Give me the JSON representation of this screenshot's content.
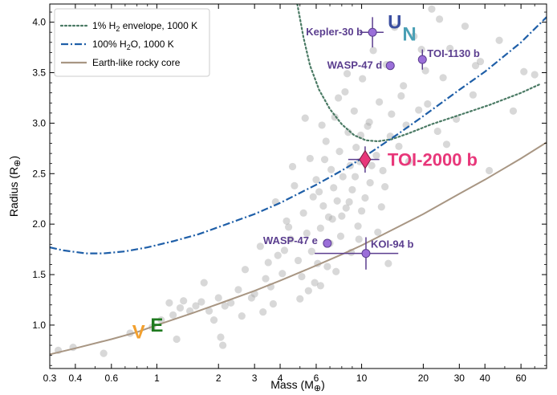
{
  "chart_data": {
    "type": "scatter",
    "title": "",
    "xlabel": "Mass (M",
    "xlabel_sym": "⊕",
    "xlabel_end": ")",
    "ylabel": "Radius (R",
    "ylabel_sym": "⊕",
    "ylabel_end": ")",
    "xscale": "log",
    "xlim": [
      0.3,
      80
    ],
    "ylim": [
      0.57,
      4.18
    ],
    "xticks": [
      0.3,
      0.4,
      0.6,
      1,
      2,
      3,
      4,
      6,
      10,
      20,
      30,
      40,
      60
    ],
    "xtick_labels": [
      "0.3",
      "0.4",
      "0.6",
      "1",
      "2",
      "3",
      "4",
      "6",
      "10",
      "20",
      "30",
      "40",
      "60"
    ],
    "yticks": [
      1.0,
      1.5,
      2.0,
      2.5,
      3.0,
      3.5,
      4.0
    ],
    "ytick_labels": [
      "1.0",
      "1.5",
      "2.0",
      "2.5",
      "3.0",
      "3.5",
      "4.0"
    ],
    "legend_position": "top-left",
    "legend": [
      {
        "key": "h2",
        "label_pre": "1% H",
        "label_sub": "2",
        "label_post": " envelope, 1000 K",
        "color": "#4a7a64",
        "style": "dotted"
      },
      {
        "key": "h2o",
        "label_pre": "100% H",
        "label_sub": "2",
        "label_post": "O, 1000 K",
        "color": "#1f5fa8",
        "style": "dashdot"
      },
      {
        "key": "rocky",
        "label_pre": "Earth-like rocky core",
        "label_sub": "",
        "label_post": "",
        "color": "#a89683",
        "style": "solid"
      }
    ],
    "curves": {
      "h2": {
        "x": [
          4.85,
          5.2,
          5.6,
          6.2,
          7.0,
          8.0,
          9.2,
          10.5,
          12.0,
          14.0,
          17.0,
          22.0,
          30.0,
          42.0,
          60.0,
          75.0
        ],
        "y": [
          4.18,
          3.85,
          3.57,
          3.33,
          3.14,
          2.99,
          2.88,
          2.83,
          2.82,
          2.84,
          2.9,
          2.99,
          3.08,
          3.18,
          3.3,
          3.39
        ]
      },
      "h2o": {
        "x": [
          0.3,
          0.35,
          0.45,
          0.55,
          0.7,
          0.9,
          1.2,
          1.6,
          2.0,
          3.0,
          4.0,
          6.0,
          8.0,
          10.0,
          15.0,
          20.0,
          30.0,
          40.0,
          60.0,
          80.0
        ],
        "y": [
          1.77,
          1.74,
          1.71,
          1.71,
          1.73,
          1.77,
          1.83,
          1.9,
          1.97,
          2.1,
          2.21,
          2.39,
          2.53,
          2.65,
          2.89,
          3.07,
          3.33,
          3.51,
          3.8,
          4.05
        ]
      },
      "rocky": {
        "x": [
          0.3,
          0.4,
          0.6,
          0.8,
          1.0,
          1.5,
          2.0,
          3.0,
          4.0,
          6.0,
          8.0,
          10.0,
          15.0,
          20.0,
          30.0,
          40.0,
          60.0,
          80.0
        ],
        "y": [
          0.71,
          0.77,
          0.86,
          0.93,
          1.0,
          1.12,
          1.21,
          1.34,
          1.44,
          1.59,
          1.7,
          1.79,
          1.97,
          2.1,
          2.3,
          2.44,
          2.65,
          2.81
        ]
      }
    },
    "background_points": [
      {
        "x": 0.33,
        "y": 0.75
      },
      {
        "x": 0.39,
        "y": 0.78
      },
      {
        "x": 0.55,
        "y": 0.72
      },
      {
        "x": 0.74,
        "y": 0.92
      },
      {
        "x": 0.95,
        "y": 0.98
      },
      {
        "x": 1.05,
        "y": 1.05
      },
      {
        "x": 1.2,
        "y": 1.1
      },
      {
        "x": 1.3,
        "y": 1.17
      },
      {
        "x": 1.35,
        "y": 1.24
      },
      {
        "x": 1.45,
        "y": 1.14
      },
      {
        "x": 1.55,
        "y": 1.19
      },
      {
        "x": 1.65,
        "y": 1.23
      },
      {
        "x": 1.8,
        "y": 1.14
      },
      {
        "x": 1.9,
        "y": 1.05
      },
      {
        "x": 2.0,
        "y": 1.27
      },
      {
        "x": 2.1,
        "y": 0.8
      },
      {
        "x": 2.15,
        "y": 1.19
      },
      {
        "x": 2.3,
        "y": 1.22
      },
      {
        "x": 2.5,
        "y": 1.35
      },
      {
        "x": 2.7,
        "y": 1.55
      },
      {
        "x": 2.9,
        "y": 1.27
      },
      {
        "x": 3.0,
        "y": 1.31
      },
      {
        "x": 3.2,
        "y": 1.78
      },
      {
        "x": 3.4,
        "y": 1.46
      },
      {
        "x": 3.6,
        "y": 1.38
      },
      {
        "x": 3.8,
        "y": 2.22
      },
      {
        "x": 3.9,
        "y": 1.69
      },
      {
        "x": 4.1,
        "y": 1.51
      },
      {
        "x": 4.3,
        "y": 2.03
      },
      {
        "x": 4.5,
        "y": 1.85
      },
      {
        "x": 4.7,
        "y": 2.38
      },
      {
        "x": 4.9,
        "y": 1.64
      },
      {
        "x": 5.1,
        "y": 1.48
      },
      {
        "x": 5.2,
        "y": 2.11
      },
      {
        "x": 5.4,
        "y": 1.91
      },
      {
        "x": 5.6,
        "y": 2.65
      },
      {
        "x": 5.7,
        "y": 1.73
      },
      {
        "x": 5.9,
        "y": 1.42
      },
      {
        "x": 6.0,
        "y": 2.44
      },
      {
        "x": 6.2,
        "y": 2.32
      },
      {
        "x": 6.3,
        "y": 1.96
      },
      {
        "x": 6.5,
        "y": 2.18
      },
      {
        "x": 6.7,
        "y": 2.82
      },
      {
        "x": 6.8,
        "y": 1.58
      },
      {
        "x": 6.9,
        "y": 2.07
      },
      {
        "x": 7.1,
        "y": 2.54
      },
      {
        "x": 7.3,
        "y": 2.36
      },
      {
        "x": 7.4,
        "y": 3.06
      },
      {
        "x": 7.6,
        "y": 2.23
      },
      {
        "x": 7.8,
        "y": 2.72
      },
      {
        "x": 7.9,
        "y": 1.88
      },
      {
        "x": 8.1,
        "y": 2.47
      },
      {
        "x": 8.3,
        "y": 3.31
      },
      {
        "x": 8.4,
        "y": 2.16
      },
      {
        "x": 8.6,
        "y": 2.91
      },
      {
        "x": 8.8,
        "y": 2.58
      },
      {
        "x": 9.0,
        "y": 2.34
      },
      {
        "x": 9.2,
        "y": 3.12
      },
      {
        "x": 9.4,
        "y": 2.76
      },
      {
        "x": 9.6,
        "y": 1.98
      },
      {
        "x": 9.8,
        "y": 2.62
      },
      {
        "x": 10.1,
        "y": 3.44
      },
      {
        "x": 10.4,
        "y": 2.26
      },
      {
        "x": 10.7,
        "y": 2.97
      },
      {
        "x": 11.0,
        "y": 2.41
      },
      {
        "x": 11.4,
        "y": 3.72
      },
      {
        "x": 11.8,
        "y": 2.68
      },
      {
        "x": 12.2,
        "y": 3.21
      },
      {
        "x": 12.7,
        "y": 2.53
      },
      {
        "x": 13.2,
        "y": 3.58
      },
      {
        "x": 13.8,
        "y": 2.87
      },
      {
        "x": 14.5,
        "y": 3.95
      },
      {
        "x": 15.2,
        "y": 2.77
      },
      {
        "x": 16.0,
        "y": 3.37
      },
      {
        "x": 17.0,
        "y": 2.62
      },
      {
        "x": 18.0,
        "y": 3.86
      },
      {
        "x": 19.0,
        "y": 3.13
      },
      {
        "x": 20.5,
        "y": 3.52
      },
      {
        "x": 22.0,
        "y": 4.13
      },
      {
        "x": 23.5,
        "y": 2.92
      },
      {
        "x": 25.0,
        "y": 3.45
      },
      {
        "x": 27.0,
        "y": 3.74
      },
      {
        "x": 29.0,
        "y": 3.04
      },
      {
        "x": 32.0,
        "y": 3.96
      },
      {
        "x": 35.0,
        "y": 3.28
      },
      {
        "x": 38.0,
        "y": 3.61
      },
      {
        "x": 42.0,
        "y": 2.53
      },
      {
        "x": 47.0,
        "y": 3.82
      },
      {
        "x": 55.0,
        "y": 3.12
      },
      {
        "x": 62.0,
        "y": 3.51
      },
      {
        "x": 70.0,
        "y": 3.48
      },
      {
        "x": 1.25,
        "y": 0.86
      },
      {
        "x": 2.05,
        "y": 0.88
      },
      {
        "x": 3.3,
        "y": 1.13
      },
      {
        "x": 4.2,
        "y": 1.74
      },
      {
        "x": 5.5,
        "y": 1.34
      },
      {
        "x": 6.1,
        "y": 1.61
      },
      {
        "x": 7.0,
        "y": 1.81
      },
      {
        "x": 8.0,
        "y": 2.08
      },
      {
        "x": 8.9,
        "y": 1.72
      },
      {
        "x": 9.3,
        "y": 2.47
      },
      {
        "x": 10.0,
        "y": 2.13
      },
      {
        "x": 12.0,
        "y": 1.92
      },
      {
        "x": 13.0,
        "y": 2.37
      },
      {
        "x": 4.6,
        "y": 2.57
      },
      {
        "x": 6.4,
        "y": 2.98
      },
      {
        "x": 7.7,
        "y": 3.25
      },
      {
        "x": 8.5,
        "y": 3.49
      },
      {
        "x": 5.3,
        "y": 3.05
      },
      {
        "x": 11.2,
        "y": 2.58
      },
      {
        "x": 9.9,
        "y": 2.88
      },
      {
        "x": 14.0,
        "y": 3.09
      },
      {
        "x": 16.5,
        "y": 2.98
      },
      {
        "x": 21.0,
        "y": 3.19
      },
      {
        "x": 26.0,
        "y": 2.79
      },
      {
        "x": 3.7,
        "y": 1.21
      },
      {
        "x": 4.4,
        "y": 1.97
      },
      {
        "x": 5.8,
        "y": 2.27
      },
      {
        "x": 6.6,
        "y": 2.64
      },
      {
        "x": 7.2,
        "y": 2.05
      },
      {
        "x": 8.7,
        "y": 2.22
      },
      {
        "x": 10.9,
        "y": 3.01
      },
      {
        "x": 15.6,
        "y": 3.27
      },
      {
        "x": 19.6,
        "y": 3.73
      },
      {
        "x": 24.0,
        "y": 4.03
      },
      {
        "x": 36.0,
        "y": 3.57
      },
      {
        "x": 12.5,
        "y": 2.17
      },
      {
        "x": 5.0,
        "y": 1.26
      },
      {
        "x": 2.6,
        "y": 1.09
      },
      {
        "x": 1.7,
        "y": 1.42
      },
      {
        "x": 1.15,
        "y": 1.22
      },
      {
        "x": 3.5,
        "y": 1.62
      },
      {
        "x": 6.3,
        "y": 1.39
      },
      {
        "x": 7.5,
        "y": 1.53
      },
      {
        "x": 9.7,
        "y": 1.85
      },
      {
        "x": 13.5,
        "y": 1.61
      }
    ],
    "highlighted_planets": [
      {
        "name": "Kepler-30 b",
        "x": 11.3,
        "y": 3.9,
        "xerr": 1.5,
        "yerr": 0.15
      },
      {
        "name": "TOI-1130 b",
        "x": 19.8,
        "y": 3.63,
        "xerr": 0.0,
        "yerr": 0.1
      },
      {
        "name": "WASP-47 d",
        "x": 13.8,
        "y": 3.57,
        "xerr": 0.6,
        "yerr": 0.02
      },
      {
        "name": "WASP-47 e",
        "x": 6.8,
        "y": 1.81,
        "xerr": 0.3,
        "yerr": 0.02
      },
      {
        "name": "KOI-94 b",
        "x": 10.5,
        "y": 1.71,
        "xerr": 4.6,
        "yerr": 0.16
      }
    ],
    "target_planet": {
      "name": "TOI-2000 b",
      "x": 10.4,
      "y": 2.64,
      "xerr": 1.8,
      "yerr": 0.13,
      "color": "#e8377a"
    },
    "solar_system": [
      {
        "letter": "V",
        "x": 0.815,
        "y": 0.93,
        "color": "#f2a02e"
      },
      {
        "letter": "E",
        "x": 1.0,
        "y": 1.0,
        "color": "#1f7a1f"
      },
      {
        "letter": "U",
        "x": 14.5,
        "y": 4.0,
        "color": "#3b4fa0"
      },
      {
        "letter": "N",
        "x": 17.1,
        "y": 3.88,
        "color": "#4aa0b5"
      }
    ],
    "colors": {
      "background_points": "#a9a9a9",
      "highlighted": "#9b6fd9",
      "highlighted_edge": "#5b3e8f",
      "label": "#5b3e8f"
    }
  }
}
